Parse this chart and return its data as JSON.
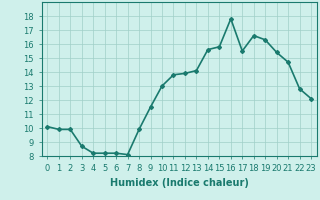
{
  "x": [
    0,
    1,
    2,
    3,
    4,
    5,
    6,
    7,
    8,
    9,
    10,
    11,
    12,
    13,
    14,
    15,
    16,
    17,
    18,
    19,
    20,
    21,
    22,
    23
  ],
  "y": [
    10.1,
    9.9,
    9.9,
    8.7,
    8.2,
    8.2,
    8.2,
    8.1,
    9.9,
    11.5,
    13.0,
    13.8,
    13.9,
    14.1,
    15.6,
    15.8,
    17.8,
    15.5,
    16.6,
    16.3,
    15.4,
    14.7,
    12.8,
    12.1
  ],
  "line_color": "#1a7a6e",
  "marker": "D",
  "marker_size": 2,
  "bg_color": "#cff0eb",
  "grid_color": "#a0cfc8",
  "xlabel": "Humidex (Indice chaleur)",
  "ylim": [
    8,
    19
  ],
  "xlim": [
    -0.5,
    23.5
  ],
  "yticks": [
    8,
    9,
    10,
    11,
    12,
    13,
    14,
    15,
    16,
    17,
    18
  ],
  "xticks": [
    0,
    1,
    2,
    3,
    4,
    5,
    6,
    7,
    8,
    9,
    10,
    11,
    12,
    13,
    14,
    15,
    16,
    17,
    18,
    19,
    20,
    21,
    22,
    23
  ],
  "xlabel_fontsize": 7,
  "tick_fontsize": 6,
  "line_width": 1.2
}
